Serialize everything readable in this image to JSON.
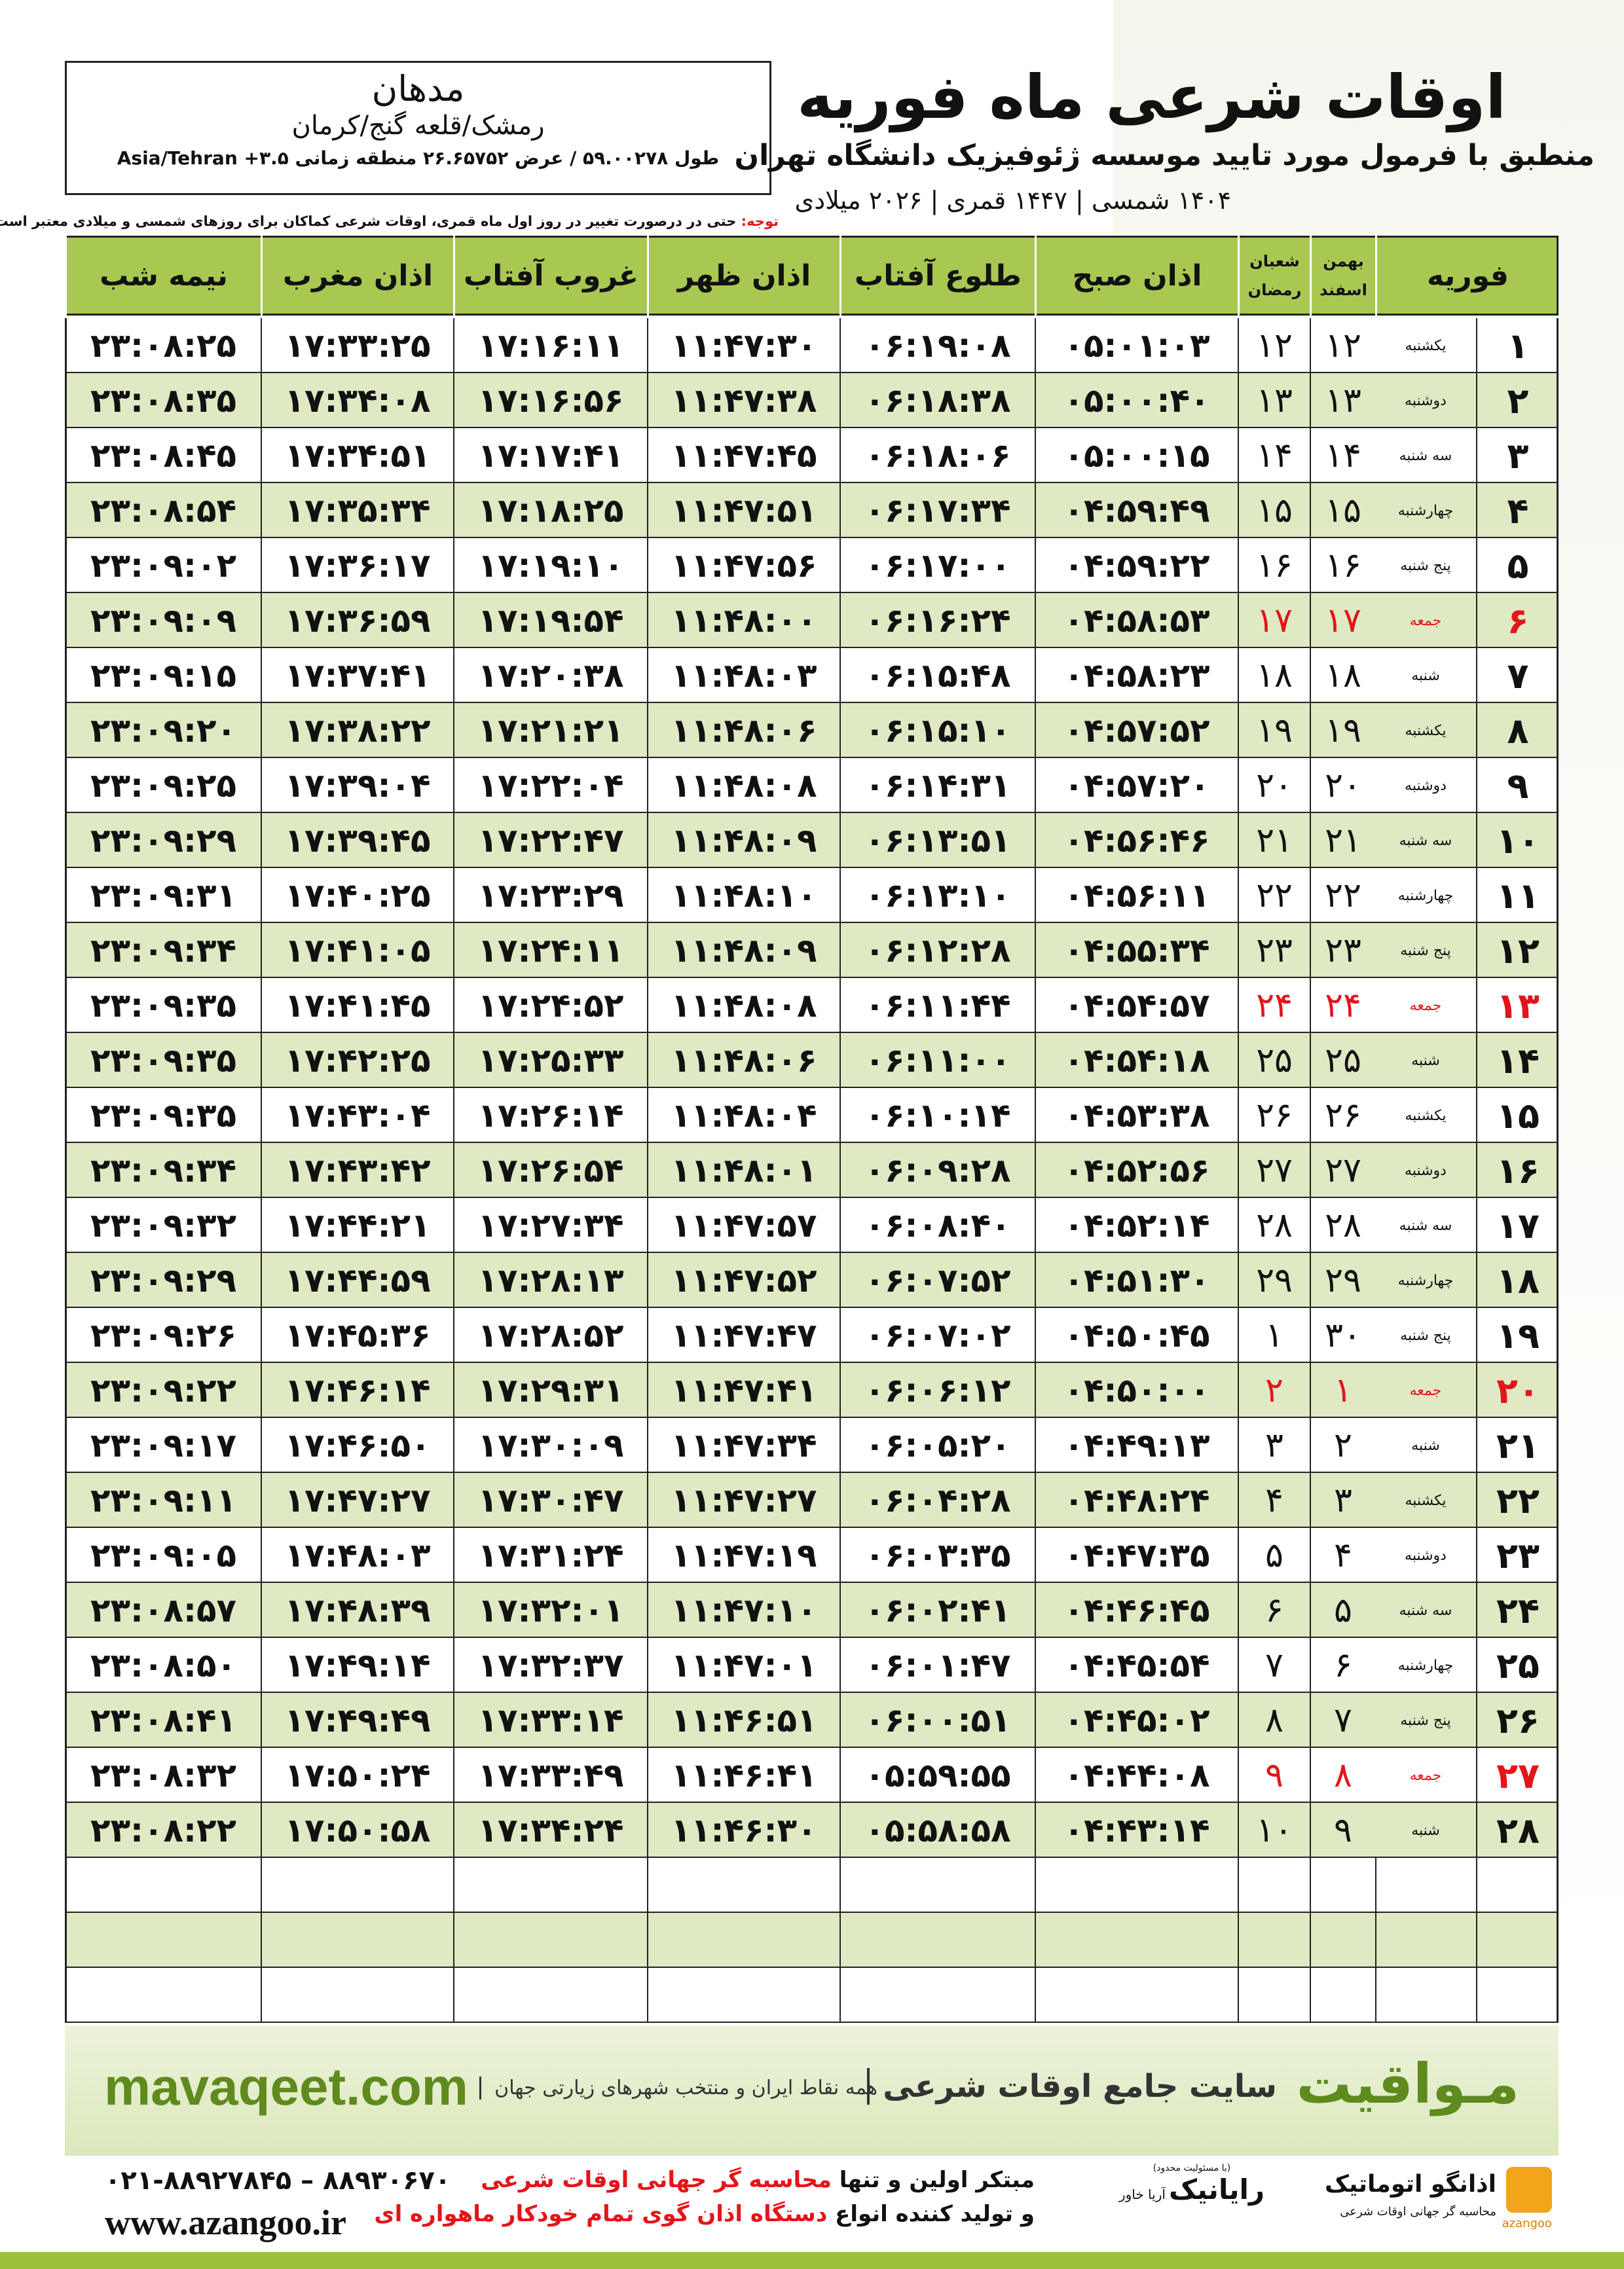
{
  "location": {
    "city": "مدهان",
    "region": "رمشک/قلعه گنج/کرمان",
    "coordinates": "طول ۵۹.۰۰۲۷۸ / عرض ۲۶.۶۵۷۵۲ منطقه زمانی ۳.۵+ Asia/Tehran"
  },
  "header": {
    "title": "اوقات شرعی ماه فوریه",
    "subtitle": "منطبق با فرمول مورد تایید موسسه ژئوفیزیک دانشگاه تهران",
    "calendar": "۱۴۰۴ شمسی | ۱۴۴۷ قمری | ۲۰۲۶ میلادی",
    "note_label": "توجه:",
    "note": "حتی در درصورت تغییر در روز اول ماه قمری، اوقات شرعی کماکان برای روزهای شمسی و میلادی معتبر است."
  },
  "table": {
    "columns": [
      "فوریه",
      [
        "بهمن",
        "اسفند"
      ],
      [
        "شعبان",
        "رمضان"
      ],
      "اذان صبح",
      "طلوع آفتاب",
      "اذان ظهر",
      "غروب آفتاب",
      "اذان مغرب",
      "نیمه شب"
    ],
    "holiday_color": "#e3151a",
    "rows": [
      {
        "cells": [
          "۱",
          "یکشنبه",
          "۱۲",
          "۱۲",
          "۰۵:۰۱:۰۳",
          "۰۶:۱۹:۰۸",
          "۱۱:۴۷:۳۰",
          "۱۷:۱۶:۱۱",
          "۱۷:۳۳:۲۵",
          "۲۳:۰۸:۲۵"
        ],
        "holiday": false
      },
      {
        "cells": [
          "۲",
          "دوشنبه",
          "۱۳",
          "۱۳",
          "۰۵:۰۰:۴۰",
          "۰۶:۱۸:۳۸",
          "۱۱:۴۷:۳۸",
          "۱۷:۱۶:۵۶",
          "۱۷:۳۴:۰۸",
          "۲۳:۰۸:۳۵"
        ],
        "holiday": false
      },
      {
        "cells": [
          "۳",
          "سه شنبه",
          "۱۴",
          "۱۴",
          "۰۵:۰۰:۱۵",
          "۰۶:۱۸:۰۶",
          "۱۱:۴۷:۴۵",
          "۱۷:۱۷:۴۱",
          "۱۷:۳۴:۵۱",
          "۲۳:۰۸:۴۵"
        ],
        "holiday": false
      },
      {
        "cells": [
          "۴",
          "چهارشنبه",
          "۱۵",
          "۱۵",
          "۰۴:۵۹:۴۹",
          "۰۶:۱۷:۳۴",
          "۱۱:۴۷:۵۱",
          "۱۷:۱۸:۲۵",
          "۱۷:۳۵:۳۴",
          "۲۳:۰۸:۵۴"
        ],
        "holiday": false
      },
      {
        "cells": [
          "۵",
          "پنج شنبه",
          "۱۶",
          "۱۶",
          "۰۴:۵۹:۲۲",
          "۰۶:۱۷:۰۰",
          "۱۱:۴۷:۵۶",
          "۱۷:۱۹:۱۰",
          "۱۷:۳۶:۱۷",
          "۲۳:۰۹:۰۲"
        ],
        "holiday": false
      },
      {
        "cells": [
          "۶",
          "جمعه",
          "۱۷",
          "۱۷",
          "۰۴:۵۸:۵۳",
          "۰۶:۱۶:۲۴",
          "۱۱:۴۸:۰۰",
          "۱۷:۱۹:۵۴",
          "۱۷:۳۶:۵۹",
          "۲۳:۰۹:۰۹"
        ],
        "holiday": true
      },
      {
        "cells": [
          "۷",
          "شنبه",
          "۱۸",
          "۱۸",
          "۰۴:۵۸:۲۳",
          "۰۶:۱۵:۴۸",
          "۱۱:۴۸:۰۳",
          "۱۷:۲۰:۳۸",
          "۱۷:۳۷:۴۱",
          "۲۳:۰۹:۱۵"
        ],
        "holiday": false
      },
      {
        "cells": [
          "۸",
          "یکشنبه",
          "۱۹",
          "۱۹",
          "۰۴:۵۷:۵۲",
          "۰۶:۱۵:۱۰",
          "۱۱:۴۸:۰۶",
          "۱۷:۲۱:۲۱",
          "۱۷:۳۸:۲۲",
          "۲۳:۰۹:۲۰"
        ],
        "holiday": false
      },
      {
        "cells": [
          "۹",
          "دوشنبه",
          "۲۰",
          "۲۰",
          "۰۴:۵۷:۲۰",
          "۰۶:۱۴:۳۱",
          "۱۱:۴۸:۰۸",
          "۱۷:۲۲:۰۴",
          "۱۷:۳۹:۰۴",
          "۲۳:۰۹:۲۵"
        ],
        "holiday": false
      },
      {
        "cells": [
          "۱۰",
          "سه شنبه",
          "۲۱",
          "۲۱",
          "۰۴:۵۶:۴۶",
          "۰۶:۱۳:۵۱",
          "۱۱:۴۸:۰۹",
          "۱۷:۲۲:۴۷",
          "۱۷:۳۹:۴۵",
          "۲۳:۰۹:۲۹"
        ],
        "holiday": false
      },
      {
        "cells": [
          "۱۱",
          "چهارشنبه",
          "۲۲",
          "۲۲",
          "۰۴:۵۶:۱۱",
          "۰۶:۱۳:۱۰",
          "۱۱:۴۸:۱۰",
          "۱۷:۲۳:۲۹",
          "۱۷:۴۰:۲۵",
          "۲۳:۰۹:۳۱"
        ],
        "holiday": false
      },
      {
        "cells": [
          "۱۲",
          "پنج شنبه",
          "۲۳",
          "۲۳",
          "۰۴:۵۵:۳۴",
          "۰۶:۱۲:۲۸",
          "۱۱:۴۸:۰۹",
          "۱۷:۲۴:۱۱",
          "۱۷:۴۱:۰۵",
          "۲۳:۰۹:۳۴"
        ],
        "holiday": false
      },
      {
        "cells": [
          "۱۳",
          "جمعه",
          "۲۴",
          "۲۴",
          "۰۴:۵۴:۵۷",
          "۰۶:۱۱:۴۴",
          "۱۱:۴۸:۰۸",
          "۱۷:۲۴:۵۲",
          "۱۷:۴۱:۴۵",
          "۲۳:۰۹:۳۵"
        ],
        "holiday": true
      },
      {
        "cells": [
          "۱۴",
          "شنبه",
          "۲۵",
          "۲۵",
          "۰۴:۵۴:۱۸",
          "۰۶:۱۱:۰۰",
          "۱۱:۴۸:۰۶",
          "۱۷:۲۵:۳۳",
          "۱۷:۴۲:۲۵",
          "۲۳:۰۹:۳۵"
        ],
        "holiday": false
      },
      {
        "cells": [
          "۱۵",
          "یکشنبه",
          "۲۶",
          "۲۶",
          "۰۴:۵۳:۳۸",
          "۰۶:۱۰:۱۴",
          "۱۱:۴۸:۰۴",
          "۱۷:۲۶:۱۴",
          "۱۷:۴۳:۰۴",
          "۲۳:۰۹:۳۵"
        ],
        "holiday": false
      },
      {
        "cells": [
          "۱۶",
          "دوشنبه",
          "۲۷",
          "۲۷",
          "۰۴:۵۲:۵۶",
          "۰۶:۰۹:۲۸",
          "۱۱:۴۸:۰۱",
          "۱۷:۲۶:۵۴",
          "۱۷:۴۳:۴۲",
          "۲۳:۰۹:۳۴"
        ],
        "holiday": false
      },
      {
        "cells": [
          "۱۷",
          "سه شنبه",
          "۲۸",
          "۲۸",
          "۰۴:۵۲:۱۴",
          "۰۶:۰۸:۴۰",
          "۱۱:۴۷:۵۷",
          "۱۷:۲۷:۳۴",
          "۱۷:۴۴:۲۱",
          "۲۳:۰۹:۳۲"
        ],
        "holiday": false
      },
      {
        "cells": [
          "۱۸",
          "چهارشنبه",
          "۲۹",
          "۲۹",
          "۰۴:۵۱:۳۰",
          "۰۶:۰۷:۵۲",
          "۱۱:۴۷:۵۲",
          "۱۷:۲۸:۱۳",
          "۱۷:۴۴:۵۹",
          "۲۳:۰۹:۲۹"
        ],
        "holiday": false
      },
      {
        "cells": [
          "۱۹",
          "پنج شنبه",
          "۳۰",
          "۱",
          "۰۴:۵۰:۴۵",
          "۰۶:۰۷:۰۲",
          "۱۱:۴۷:۴۷",
          "۱۷:۲۸:۵۲",
          "۱۷:۴۵:۳۶",
          "۲۳:۰۹:۲۶"
        ],
        "holiday": false
      },
      {
        "cells": [
          "۲۰",
          "جمعه",
          "۱",
          "۲",
          "۰۴:۵۰:۰۰",
          "۰۶:۰۶:۱۲",
          "۱۱:۴۷:۴۱",
          "۱۷:۲۹:۳۱",
          "۱۷:۴۶:۱۴",
          "۲۳:۰۹:۲۲"
        ],
        "holiday": true
      },
      {
        "cells": [
          "۲۱",
          "شنبه",
          "۲",
          "۳",
          "۰۴:۴۹:۱۳",
          "۰۶:۰۵:۲۰",
          "۱۱:۴۷:۳۴",
          "۱۷:۳۰:۰۹",
          "۱۷:۴۶:۵۰",
          "۲۳:۰۹:۱۷"
        ],
        "holiday": false
      },
      {
        "cells": [
          "۲۲",
          "یکشنبه",
          "۳",
          "۴",
          "۰۴:۴۸:۲۴",
          "۰۶:۰۴:۲۸",
          "۱۱:۴۷:۲۷",
          "۱۷:۳۰:۴۷",
          "۱۷:۴۷:۲۷",
          "۲۳:۰۹:۱۱"
        ],
        "holiday": false
      },
      {
        "cells": [
          "۲۳",
          "دوشنبه",
          "۴",
          "۵",
          "۰۴:۴۷:۳۵",
          "۰۶:۰۳:۳۵",
          "۱۱:۴۷:۱۹",
          "۱۷:۳۱:۲۴",
          "۱۷:۴۸:۰۳",
          "۲۳:۰۹:۰۵"
        ],
        "holiday": false
      },
      {
        "cells": [
          "۲۴",
          "سه شنبه",
          "۵",
          "۶",
          "۰۴:۴۶:۴۵",
          "۰۶:۰۲:۴۱",
          "۱۱:۴۷:۱۰",
          "۱۷:۳۲:۰۱",
          "۱۷:۴۸:۳۹",
          "۲۳:۰۸:۵۷"
        ],
        "holiday": false
      },
      {
        "cells": [
          "۲۵",
          "چهارشنبه",
          "۶",
          "۷",
          "۰۴:۴۵:۵۴",
          "۰۶:۰۱:۴۷",
          "۱۱:۴۷:۰۱",
          "۱۷:۳۲:۳۷",
          "۱۷:۴۹:۱۴",
          "۲۳:۰۸:۵۰"
        ],
        "holiday": false
      },
      {
        "cells": [
          "۲۶",
          "پنج شنبه",
          "۷",
          "۸",
          "۰۴:۴۵:۰۲",
          "۰۶:۰۰:۵۱",
          "۱۱:۴۶:۵۱",
          "۱۷:۳۳:۱۴",
          "۱۷:۴۹:۴۹",
          "۲۳:۰۸:۴۱"
        ],
        "holiday": false
      },
      {
        "cells": [
          "۲۷",
          "جمعه",
          "۸",
          "۹",
          "۰۴:۴۴:۰۸",
          "۰۵:۵۹:۵۵",
          "۱۱:۴۶:۴۱",
          "۱۷:۳۳:۴۹",
          "۱۷:۵۰:۲۴",
          "۲۳:۰۸:۳۲"
        ],
        "holiday": true
      },
      {
        "cells": [
          "۲۸",
          "شنبه",
          "۹",
          "۱۰",
          "۰۴:۴۳:۱۴",
          "۰۵:۵۸:۵۸",
          "۱۱:۴۶:۳۰",
          "۱۷:۳۴:۲۴",
          "۱۷:۵۰:۵۸",
          "۲۳:۰۸:۲۲"
        ],
        "holiday": false
      }
    ]
  },
  "footer": {
    "site_name": "مـواقیت",
    "site_tagline": "سایت جامع اوقات شرعی",
    "site_coverage": "همه نقاط ایران و منتخب شهرهای زیارتی جهان",
    "url": "mavaqeet.com"
  },
  "contact": {
    "phone": "۰۲۱-۸۸۹۲۷۸۴۵ – ۸۸۹۳۰۶۷۰",
    "web": "www.azangoo.ir",
    "line1": [
      "مبتکر اولین و تنها",
      "محاسبه گر جهانی اوقات شرعی"
    ],
    "line2": [
      "و تولید کننده انواع",
      "دستگاه اذان گوی تمام خودکار ماهواره ای"
    ]
  },
  "logos": {
    "rayanik": "رایانیک",
    "arya": "آریا خاور",
    "limited": "(با مسئولیت محدود)",
    "azangoo_fa": "اذانگو اتوماتیک",
    "azangoo_sub": "محاسبه گر جهانی اوقات شرعی",
    "azangoo_en": "azangoo"
  }
}
